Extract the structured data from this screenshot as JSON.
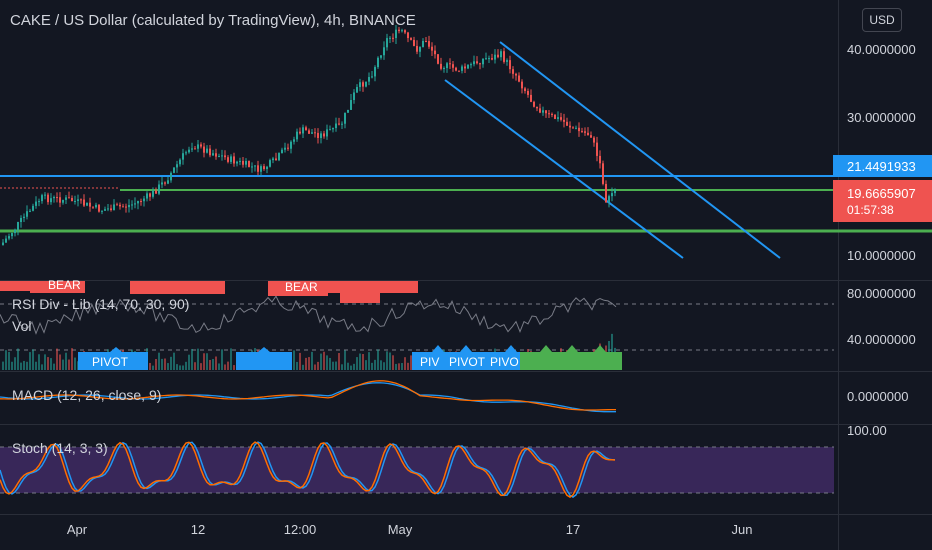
{
  "header": {
    "title": "CAKE / US Dollar (calculated by TradingView), 4h, BINANCE",
    "currency": "USD"
  },
  "price_axis": {
    "labels": [
      "40.0000000",
      "30.0000000",
      "10.0000000"
    ],
    "lower_labels": [
      "80.0000000",
      "40.0000000"
    ],
    "macd_label": "0.0000000",
    "stoch_label": "100.00"
  },
  "tags": {
    "resistance": "21.4491933",
    "last_price": "19.6665907",
    "countdown": "01:57:38"
  },
  "indicators": {
    "rsi": "RSI Div - Lib (14, 70, 30, 90)",
    "vol": "Vol",
    "macd": "MACD (12, 26, close, 9)",
    "stoch": "Stoch (14, 3, 3)"
  },
  "markers": {
    "bear": "BEAR",
    "pivot": "PIVOT",
    "piv": "PIV",
    "pivo": "PIVO"
  },
  "time_axis": [
    "Apr",
    "12",
    "12:00",
    "May",
    "17",
    "Jun"
  ],
  "colors": {
    "background": "#131722",
    "up": "#26a69a",
    "down": "#ef5350",
    "channel": "#2196f3",
    "support": "#4caf50",
    "stoch_band": "#3f2a63",
    "last_price_tag": "#ef5350",
    "resistance_tag": "#2196f3"
  },
  "chart_data": {
    "type": "candlestick",
    "title": "CAKE / US Dollar (calculated by TradingView), 4h, BINANCE",
    "y_ticks": [
      "40.0000000",
      "30.0000000",
      "10.0000000"
    ],
    "x_ticks": [
      "Apr",
      "12",
      "12:00",
      "May",
      "17",
      "Jun"
    ],
    "horizontal_levels": [
      21.4491933,
      19.6665907
    ],
    "last_price": 19.6665907
  }
}
